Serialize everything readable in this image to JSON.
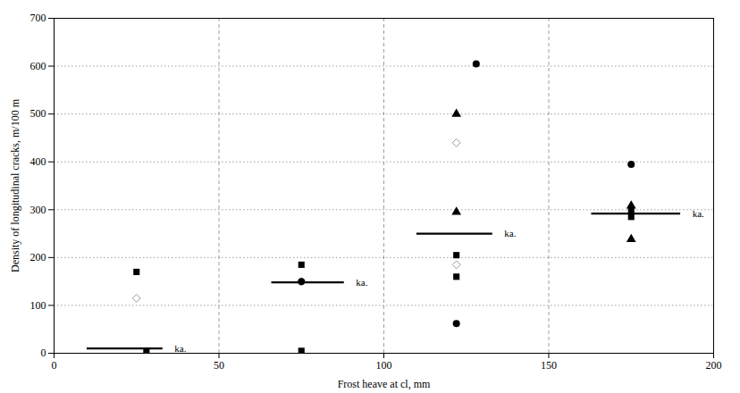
{
  "chart_data": {
    "type": "scatter",
    "xlabel": "Frost heave at cl, mm",
    "ylabel": "Density of longitudinal cracks, m/100 m",
    "xlim": [
      0,
      200
    ],
    "ylim": [
      0,
      700
    ],
    "xticks": [
      0,
      50,
      100,
      150,
      200
    ],
    "yticks": [
      0,
      100,
      200,
      300,
      400,
      500,
      600,
      700
    ],
    "grid": true,
    "series": [
      {
        "marker": "square",
        "color": "#000000",
        "x": [
          25,
          28,
          75,
          75,
          122,
          122,
          175,
          175
        ],
        "y": [
          170,
          5,
          5,
          185,
          160,
          205,
          285,
          300
        ]
      },
      {
        "marker": "open_diamond",
        "color": "#999999",
        "x": [
          25,
          75,
          122,
          122
        ],
        "y": [
          115,
          150,
          185,
          440
        ]
      },
      {
        "marker": "circle",
        "color": "#000000",
        "x": [
          75,
          122,
          128,
          175
        ],
        "y": [
          150,
          62,
          605,
          395
        ]
      },
      {
        "marker": "triangle",
        "color": "#000000",
        "x": [
          122,
          122,
          175,
          175
        ],
        "y": [
          500,
          295,
          238,
          308
        ]
      }
    ],
    "lines": [
      {
        "x1": 10,
        "x2": 33,
        "y": 10,
        "color": "#000000"
      },
      {
        "x1": 66,
        "x2": 88,
        "y": 148,
        "color": "#000000"
      },
      {
        "x1": 110,
        "x2": 133,
        "y": 250,
        "color": "#000000"
      },
      {
        "x1": 163,
        "x2": 190,
        "y": 292,
        "color": "#000000"
      }
    ],
    "annotations": [
      {
        "x": 36,
        "y": 10,
        "text": "ka."
      },
      {
        "x": 91,
        "y": 148,
        "text": "ka."
      },
      {
        "x": 136,
        "y": 250,
        "text": "ka."
      },
      {
        "x": 193,
        "y": 292,
        "text": "ka."
      }
    ]
  }
}
